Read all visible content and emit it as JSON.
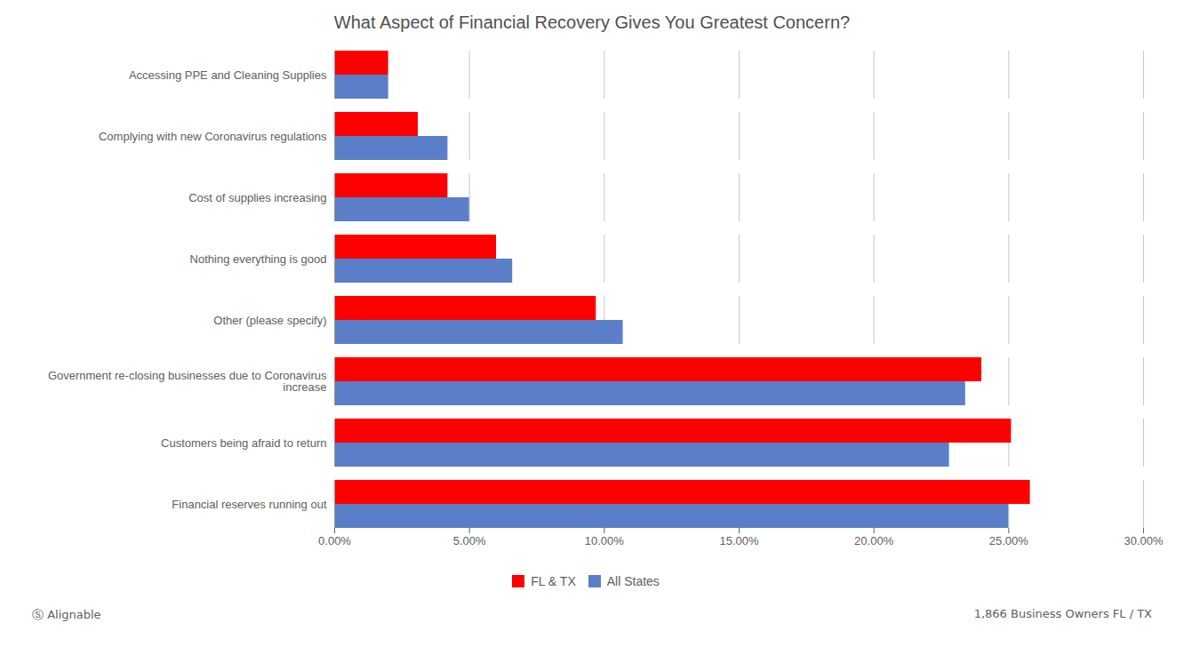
{
  "chart_data": {
    "type": "bar",
    "orientation": "horizontal",
    "title": "What Aspect of Financial Recovery Gives You Greatest Concern?",
    "categories": [
      "Financial reserves running out",
      "Customers being afraid to return",
      "Government re-closing businesses due to Coronavirus\nincrease",
      "Other (please specify)",
      "Nothing everything is good",
      "Cost of supplies increasing",
      "Complying with new Coronavirus regulations",
      "Accessing PPE and Cleaning Supplies"
    ],
    "series": [
      {
        "name": "FL & TX",
        "color": "#FF0000",
        "values": [
          0.258,
          0.251,
          0.24,
          0.097,
          0.06,
          0.042,
          0.031,
          0.02
        ]
      },
      {
        "name": "All States",
        "color": "#5B7EC9",
        "values": [
          0.25,
          0.228,
          0.234,
          0.107,
          0.066,
          0.05,
          0.042,
          0.02
        ]
      }
    ],
    "xlim": [
      0,
      0.3
    ],
    "xticks": [
      {
        "value": 0.0,
        "label": "0.00%"
      },
      {
        "value": 0.05,
        "label": "5.00%"
      },
      {
        "value": 0.1,
        "label": "10.00%"
      },
      {
        "value": 0.15,
        "label": "15.00%"
      },
      {
        "value": 0.2,
        "label": "20.00%"
      },
      {
        "value": 0.25,
        "label": "25.00%"
      },
      {
        "value": 0.3,
        "label": "30.00%"
      }
    ],
    "grid": true,
    "legend": "bottom",
    "annotations": [
      "Ⓢ Alignable",
      "1,866 Business Owners FL / TX"
    ]
  }
}
